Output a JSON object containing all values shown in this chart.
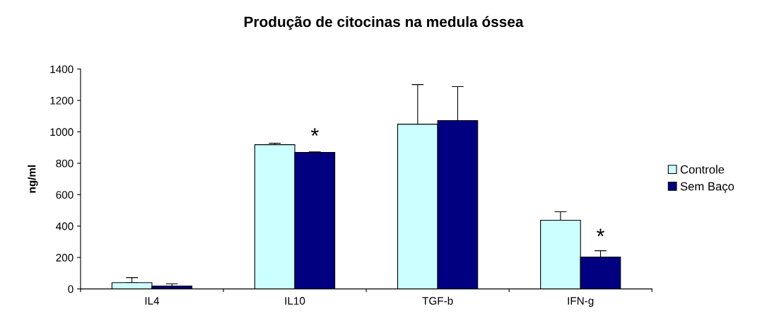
{
  "chart_data": {
    "type": "bar",
    "title": "Produção de citocinas na medula óssea",
    "ylabel": "ng/ml",
    "categories": [
      "IL4",
      "IL10",
      "TGF-b",
      "IFN-g"
    ],
    "series": [
      {
        "name": "Controle",
        "color": "#ccffff",
        "values": [
          40,
          918,
          1049,
          437
        ],
        "errors": [
          [
            40,
            72
          ],
          [
            918,
            927
          ],
          [
            1049,
            1301
          ],
          [
            437,
            491
          ]
        ]
      },
      {
        "name": "Sem Baço",
        "color": "#000080",
        "values": [
          18,
          869,
          1072,
          203
        ],
        "errors": [
          [
            18,
            32
          ],
          [
            869,
            872
          ],
          [
            1072,
            1288
          ],
          [
            203,
            243
          ]
        ]
      }
    ],
    "annotations": [
      {
        "text": "*",
        "x": "IL10",
        "y": 900
      },
      {
        "text": "*",
        "x": "IFN-g",
        "y": 260
      }
    ],
    "ylim": [
      0,
      1400
    ],
    "yticks": [
      0,
      200,
      400,
      600,
      800,
      1000,
      1200,
      1400
    ],
    "grid": false,
    "legend": "right"
  }
}
